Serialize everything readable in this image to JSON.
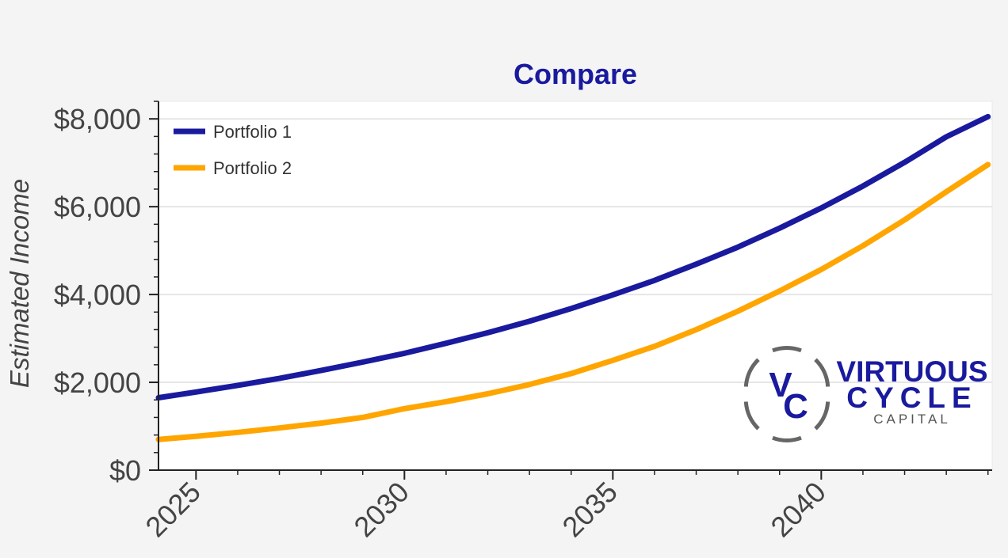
{
  "chart_data": {
    "type": "line",
    "title": "Compare",
    "xlabel": "",
    "ylabel": "Estimated Income",
    "xlim": [
      2024.1,
      2044.1
    ],
    "ylim": [
      0,
      8400
    ],
    "x_ticks": [
      2025,
      2030,
      2035,
      2040
    ],
    "y_ticks": [
      0,
      2000,
      4000,
      6000,
      8000
    ],
    "y_tick_labels": [
      "$0",
      "$2,000",
      "$4,000",
      "$6,000",
      "$8,000"
    ],
    "grid": true,
    "legend_position": "top-left",
    "series": [
      {
        "name": "Portfolio 1",
        "color": "#1a1a9e",
        "x": [
          2024.1,
          2025,
          2026,
          2027,
          2028,
          2029,
          2030,
          2031,
          2032,
          2033,
          2034,
          2035,
          2036,
          2037,
          2038,
          2039,
          2040,
          2041,
          2042,
          2043,
          2044
        ],
        "values": [
          1650,
          1780,
          1930,
          2090,
          2270,
          2460,
          2660,
          2890,
          3130,
          3390,
          3680,
          3990,
          4320,
          4690,
          5080,
          5510,
          5970,
          6470,
          7010,
          7590,
          8050
        ]
      },
      {
        "name": "Portfolio 2",
        "color": "#ffa500",
        "x": [
          2024.1,
          2025,
          2026,
          2027,
          2028,
          2029,
          2030,
          2031,
          2032,
          2033,
          2034,
          2035,
          2036,
          2037,
          2038,
          2039,
          2040,
          2041,
          2042,
          2043,
          2044
        ],
        "values": [
          700,
          770,
          860,
          960,
          1070,
          1200,
          1400,
          1560,
          1740,
          1950,
          2200,
          2500,
          2820,
          3200,
          3620,
          4080,
          4570,
          5110,
          5700,
          6340,
          6960
        ]
      }
    ]
  },
  "logo": {
    "monogram_top": "V",
    "monogram_bottom": "C",
    "line1": "VIRTUOUS",
    "line2": "CYCLE",
    "line3": "CAPITAL",
    "color_primary": "#1a1a9e",
    "color_ring": "#666666"
  },
  "colors": {
    "title": "#1a1a9e",
    "axis_text": "#444444",
    "grid": "#e6e6e6",
    "plot_bg": "#ffffff",
    "page_bg": "#f4f4f4"
  }
}
